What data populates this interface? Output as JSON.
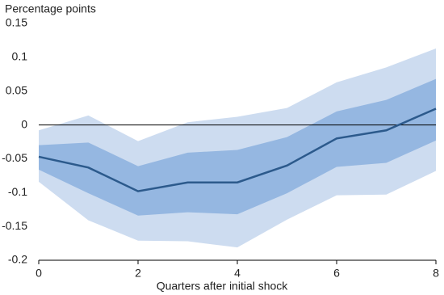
{
  "chart_data": {
    "type": "band-line",
    "y_label": "Percentage points",
    "x_label": "Quarters after initial shock",
    "x": [
      0,
      1,
      2,
      3,
      4,
      5,
      6,
      7,
      8
    ],
    "bands": [
      {
        "color": "#cddcf0",
        "upper": [
          -0.008,
          0.014,
          -0.024,
          0.004,
          0.012,
          0.025,
          0.063,
          0.085,
          0.113
        ],
        "lower": [
          -0.084,
          -0.141,
          -0.171,
          -0.172,
          -0.181,
          -0.14,
          -0.104,
          -0.103,
          -0.068
        ]
      },
      {
        "color": "#95b7e1",
        "upper": [
          -0.03,
          -0.026,
          -0.061,
          -0.041,
          -0.037,
          -0.018,
          0.02,
          0.037,
          0.068
        ],
        "lower": [
          -0.066,
          -0.101,
          -0.134,
          -0.129,
          -0.132,
          -0.101,
          -0.062,
          -0.056,
          -0.023
        ]
      }
    ],
    "series": [
      {
        "color": "#2c5a8c",
        "values": [
          -0.047,
          -0.063,
          -0.098,
          -0.085,
          -0.085,
          -0.06,
          -0.02,
          -0.008,
          0.024
        ]
      }
    ],
    "xlim": [
      0,
      8
    ],
    "xticks": [
      0,
      2,
      4,
      6,
      8
    ],
    "ylim": [
      -0.2,
      0.15
    ],
    "yticks": [
      0.15,
      0.1,
      0.05,
      0,
      -0.05,
      -0.1,
      -0.15,
      -0.2
    ],
    "zero_line": true
  }
}
